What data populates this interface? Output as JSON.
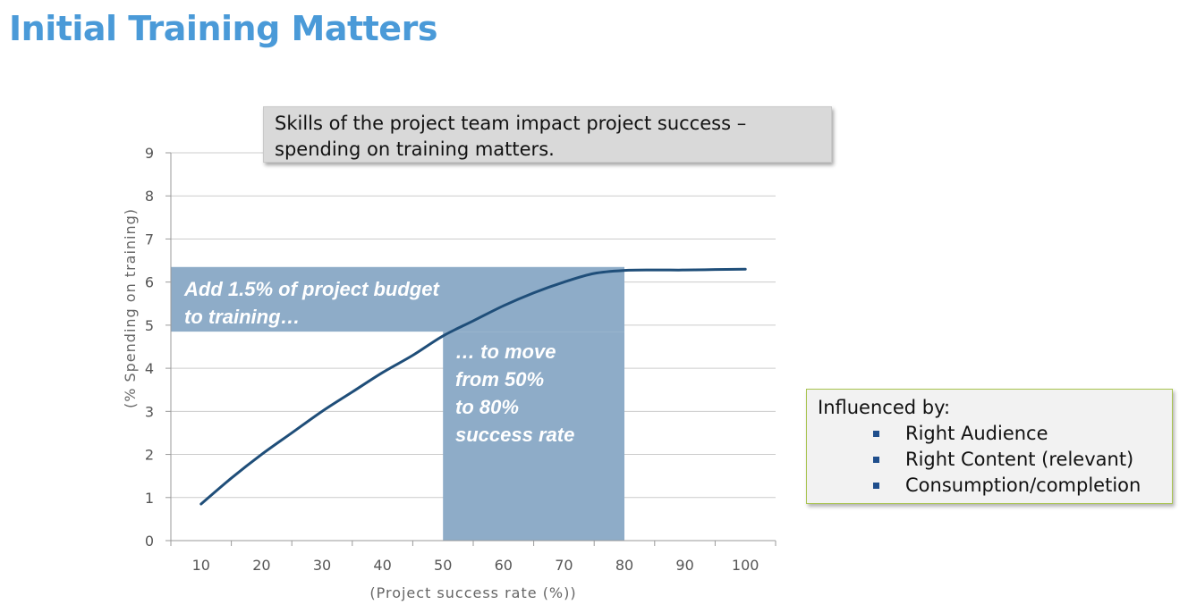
{
  "page": {
    "title": "Initial Training Matters"
  },
  "callout": {
    "lines": [
      "Skills of the project team impact project success –",
      "spending on training matters."
    ]
  },
  "annotation_left": {
    "lines": [
      "Add 1.5% of project budget",
      "to training…"
    ]
  },
  "annotation_right": {
    "lines": [
      "… to move",
      "from 50%",
      "to 80%",
      "success rate"
    ]
  },
  "influence": {
    "heading": "Influenced by:",
    "items": [
      "Right Audience",
      "Right Content (relevant)",
      "Consumption/completion"
    ]
  },
  "colors": {
    "title": "#4a9ad8",
    "line": "#1f4e79",
    "highlight": "#8eacc8",
    "grid": "#cccccc",
    "influence_border": "#a9c450"
  },
  "chart_data": {
    "type": "line",
    "xlabel": "(Project success rate (%))",
    "ylabel": "(% Spending on training)",
    "xlim": [
      5,
      105
    ],
    "ylim": [
      0,
      9
    ],
    "xticks": [
      10,
      20,
      30,
      40,
      50,
      60,
      70,
      80,
      90,
      100
    ],
    "yticks": [
      0,
      1,
      2,
      3,
      4,
      5,
      6,
      7,
      8,
      9
    ],
    "grid": "horizontal",
    "series": [
      {
        "x": [
          10,
          15,
          20,
          25,
          30,
          35,
          40,
          45,
          50,
          55,
          60,
          65,
          70,
          75,
          80,
          85,
          90,
          95,
          100
        ],
        "values": [
          0.85,
          1.45,
          2.0,
          2.5,
          3.0,
          3.45,
          3.9,
          4.3,
          4.75,
          5.1,
          5.45,
          5.75,
          6.0,
          6.2,
          6.27,
          6.28,
          6.28,
          6.29,
          6.3
        ]
      }
    ],
    "highlight_bands": [
      {
        "axis": "y",
        "from": 4.85,
        "to": 6.35,
        "x_to": 80
      },
      {
        "axis": "x",
        "from": 50,
        "to": 80,
        "y_to": 4.85
      }
    ]
  }
}
